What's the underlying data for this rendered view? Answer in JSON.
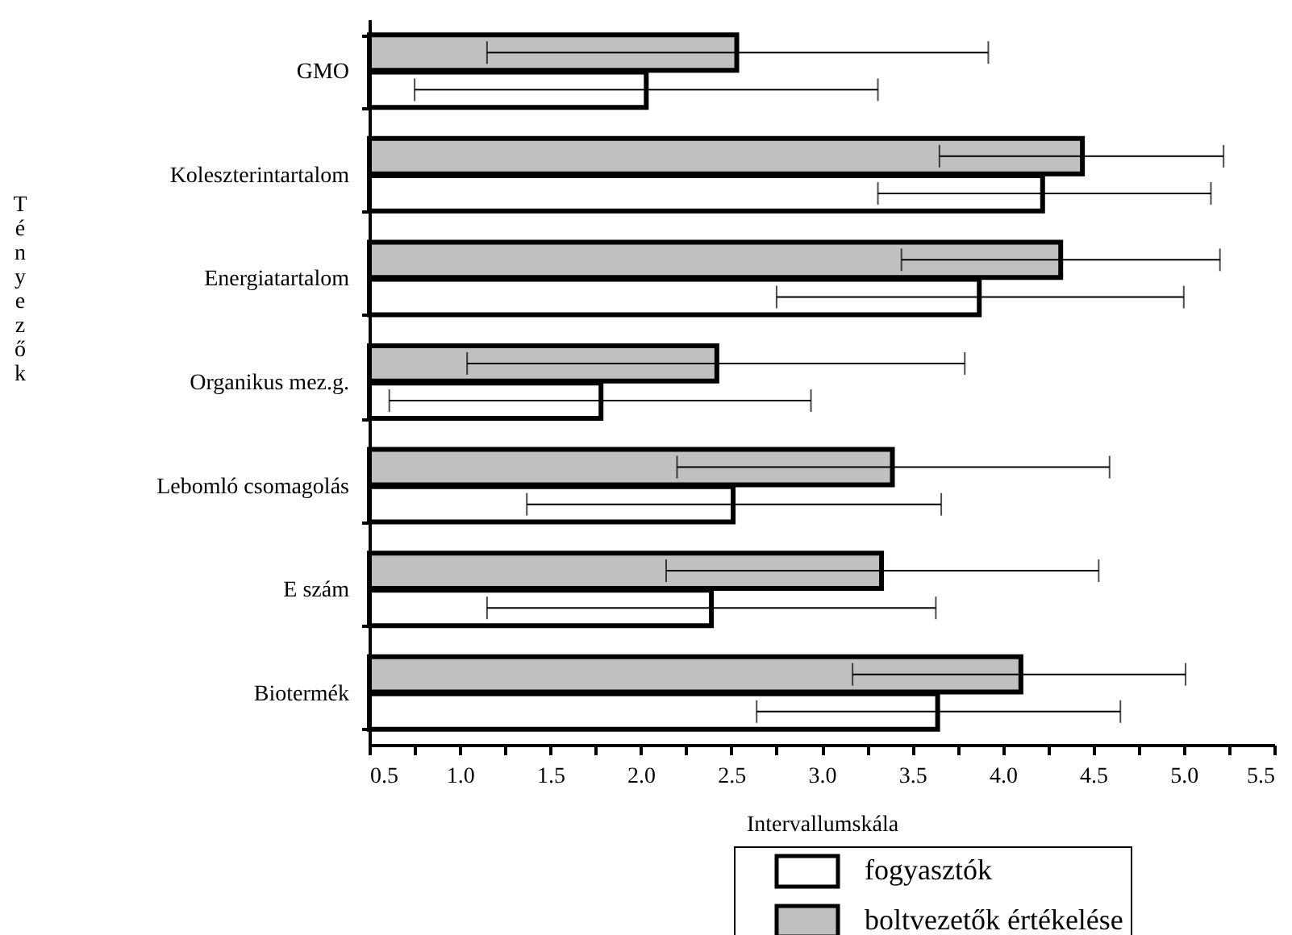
{
  "chart_data": {
    "type": "bar",
    "orientation": "horizontal",
    "xlabel": "Intervallumskála",
    "annotations": [
      "Tényezők"
    ],
    "categories": [
      "GMO",
      "Koleszterintartalom",
      "Energiatartalom",
      "Organikus mez.g.",
      "Lebomló csomagolás",
      "E szám",
      "Biotermék"
    ],
    "series": [
      {
        "name": "fogyasztók",
        "color": "#ffffff",
        "values": [
          2.03,
          4.22,
          3.87,
          1.78,
          2.51,
          2.39,
          3.64
        ],
        "errors": [
          [
            0.75,
            3.31
          ],
          [
            3.31,
            5.15
          ],
          [
            2.75,
            5.0
          ],
          [
            0.61,
            2.94
          ],
          [
            1.37,
            3.66
          ],
          [
            1.15,
            3.63
          ],
          [
            2.64,
            4.65
          ]
        ]
      },
      {
        "name": "boltvezetők értékelése",
        "color": "#c0c0c0",
        "values": [
          2.53,
          4.44,
          4.32,
          2.42,
          3.39,
          3.33,
          4.1
        ],
        "errors": [
          [
            1.15,
            3.92
          ],
          [
            3.65,
            5.22
          ],
          [
            3.44,
            5.2
          ],
          [
            1.04,
            3.79
          ],
          [
            2.2,
            4.59
          ],
          [
            2.14,
            4.53
          ],
          [
            3.17,
            5.01
          ]
        ]
      }
    ],
    "xlim": [
      0.5,
      5.5
    ],
    "xticks": [
      0.5,
      {
        "value": 0.75,
        "label": null
      },
      {
        "value": 1,
        "label": "1.0"
      },
      {
        "value": 1.25,
        "label": null
      },
      1.5,
      {
        "value": 1.75,
        "label": null
      },
      {
        "value": 2,
        "label": "2.0"
      },
      {
        "value": 2.25,
        "label": null
      },
      2.5,
      {
        "value": 2.75,
        "label": null
      },
      {
        "value": 3,
        "label": "3.0"
      },
      {
        "value": 3.25,
        "label": null
      },
      3.5,
      {
        "value": 3.75,
        "label": null
      },
      {
        "value": 4,
        "label": "4.0"
      },
      {
        "value": 4.25,
        "label": null
      },
      4.5,
      {
        "value": 4.75,
        "label": null
      },
      {
        "value": 5,
        "label": "5.0"
      },
      {
        "value": 5.25,
        "label": null
      },
      5.5
    ],
    "grid": false,
    "legend": "bottom right"
  }
}
